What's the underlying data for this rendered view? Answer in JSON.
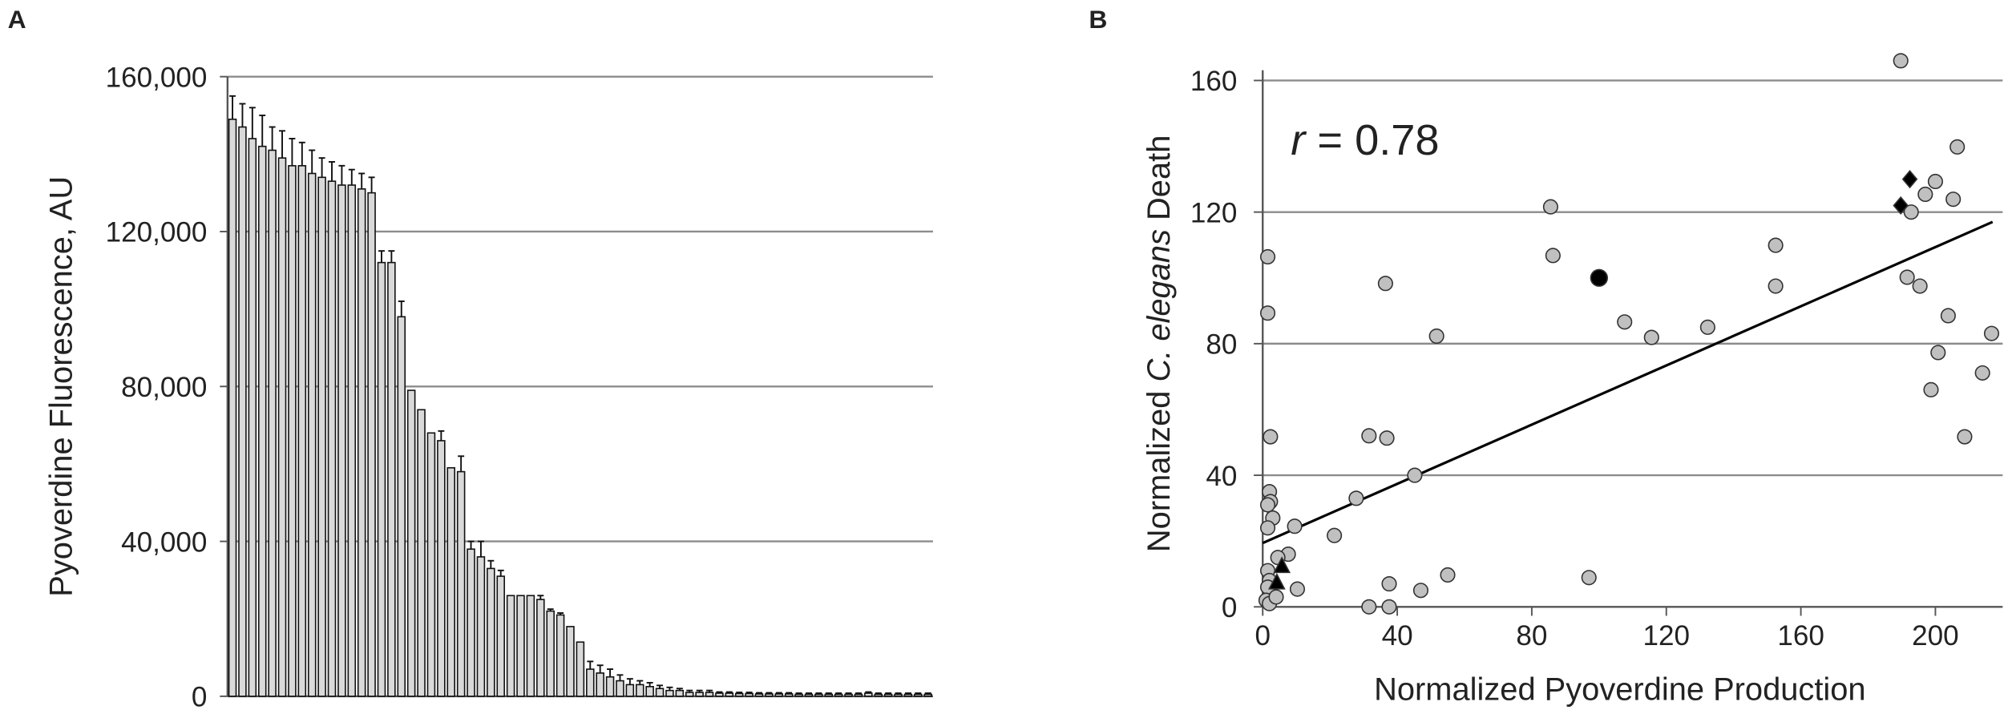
{
  "chart_data": [
    {
      "type": "bar",
      "panel_label": "A",
      "y_label": "Pyoverdine Fluorescence, AU",
      "values": [
        149000,
        147000,
        144000,
        142000,
        141000,
        139000,
        137000,
        137000,
        135000,
        134000,
        133000,
        132000,
        132000,
        131000,
        130000,
        112000,
        112000,
        98000,
        79000,
        74000,
        68000,
        66000,
        59000,
        58000,
        38000,
        36000,
        33000,
        31000,
        26000,
        26000,
        26000,
        25000,
        22000,
        21000,
        18000,
        14000,
        7000,
        6000,
        5000,
        4000,
        3000,
        3000,
        2500,
        2000,
        1500,
        1500,
        1000,
        1000,
        1000,
        800,
        800,
        700,
        700,
        600,
        600,
        600,
        600,
        500,
        500,
        500,
        500,
        500,
        500,
        500,
        800,
        500,
        500,
        500,
        500,
        500,
        500
      ],
      "errors": [
        6000,
        6000,
        8000,
        8000,
        6000,
        7000,
        7000,
        6000,
        6000,
        5000,
        5000,
        5000,
        4000,
        4000,
        4000,
        3000,
        3000,
        4000,
        0,
        0,
        0,
        2500,
        0,
        4000,
        2000,
        4000,
        2000,
        1500,
        0,
        0,
        0,
        1000,
        500,
        500,
        0,
        0,
        2000,
        2000,
        2000,
        1500,
        1500,
        1000,
        1000,
        800,
        800,
        500,
        500,
        500,
        500,
        300,
        300,
        300,
        300,
        300,
        300,
        300,
        300,
        300,
        300,
        300,
        300,
        300,
        300,
        300,
        300,
        300,
        300,
        300,
        300,
        300,
        300
      ],
      "color": "#d9d9d9",
      "edge_color": "#111111",
      "ylim": [
        0,
        160000
      ],
      "yticks": [
        0,
        {
          "value": 40000,
          "label": "40,000"
        },
        {
          "value": 80000,
          "label": "80,000"
        },
        {
          "value": 120000,
          "label": "120,000"
        },
        {
          "value": 160000,
          "label": "160,000"
        }
      ],
      "grid": true
    },
    {
      "type": "scatter",
      "panel_label": "B",
      "x_label": "Normalized Pyoverdine Production",
      "y_label": [
        "Normalized ",
        "C. elegans",
        " Death"
      ],
      "annotation": {
        "symbol": "r",
        "text": " = 0.78"
      },
      "series": [
        {
          "color": "#c0c0c0",
          "marker": "circle",
          "x": [
            189.7,
            206.5,
            200,
            197,
            205.3,
            192.8,
            191.6,
            195.4,
            203.8,
            216.7,
            200.8,
            214,
            198.7,
            208.7,
            85.6,
            86.3,
            36.5,
            152.5,
            152.5,
            107.6,
            115.6,
            132.3,
            51.7,
            31.6,
            36.9,
            45.2,
            27.8,
            21.3,
            37.6,
            47,
            55,
            97,
            31.6,
            37.6,
            9.5,
            7.6,
            10.3,
            1.5,
            1.5,
            2.3,
            2,
            2.3,
            1.5,
            3,
            1.5,
            1.5,
            2,
            1.5,
            1,
            2,
            4,
            4.5
          ],
          "values": [
            166,
            139.8,
            129.3,
            125.4,
            123.9,
            120,
            100.2,
            97.5,
            88.5,
            83.1,
            77.3,
            71.1,
            66,
            51.7,
            121.6,
            106.8,
            98.3,
            109.9,
            97.5,
            86.6,
            81.9,
            85,
            82.3,
            52,
            51.3,
            40,
            33,
            21.7,
            7,
            5,
            9.7,
            8.9,
            0,
            0,
            24.5,
            16,
            5.4,
            106.4,
            89.3,
            51.7,
            35,
            32,
            31,
            27,
            24,
            11,
            8,
            6,
            2,
            1,
            3,
            15
          ]
        },
        {
          "color": "#000000",
          "marker": "circle",
          "x": [
            100
          ],
          "values": [
            100
          ]
        },
        {
          "color": "#000000",
          "marker": "diamond",
          "x": [
            192.4,
            189.7
          ],
          "values": [
            130,
            122
          ]
        },
        {
          "color": "#000000",
          "marker": "triangle",
          "x": [
            5.7,
            4.2
          ],
          "values": [
            12.4,
            7.4
          ]
        }
      ],
      "trendline": {
        "color": "#000000",
        "x": [
          0,
          217
        ],
        "values": [
          19.4,
          117
        ]
      },
      "xlim": [
        0,
        220
      ],
      "xticks": [
        0,
        40,
        80,
        120,
        160,
        200
      ],
      "ylim": [
        0,
        160
      ],
      "yticks": [
        0,
        40,
        80,
        120,
        160
      ],
      "grid": true
    }
  ]
}
